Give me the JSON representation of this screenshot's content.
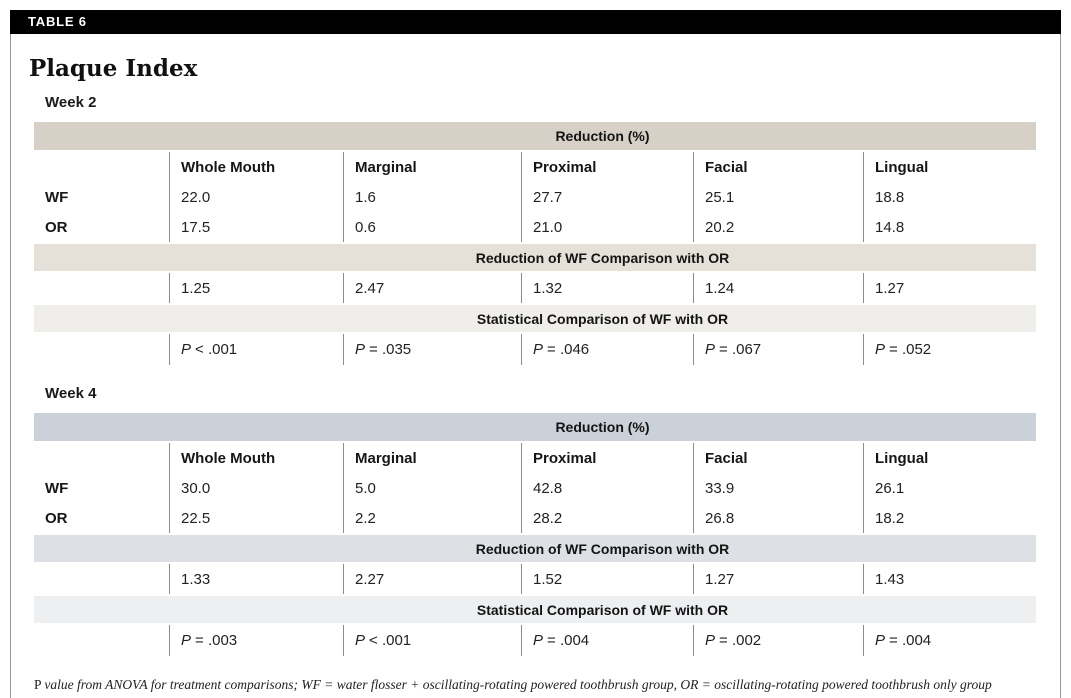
{
  "table_tag": "TABLE 6",
  "title": "Plaque Index",
  "p_symbol": "P",
  "columns": [
    "Whole Mouth",
    "Marginal",
    "Proximal",
    "Facial",
    "Lingual"
  ],
  "sections": [
    {
      "week": "Week 2",
      "band1": "Reduction (%)",
      "band2": "Reduction of WF Comparison with OR",
      "band3": "Statistical Comparison of WF with OR",
      "rows": [
        {
          "label": "WF",
          "values": [
            "22.0",
            "1.6",
            "27.7",
            "25.1",
            "18.8"
          ]
        },
        {
          "label": "OR",
          "values": [
            "17.5",
            "0.6",
            "21.0",
            "20.2",
            "14.8"
          ]
        }
      ],
      "ratios": [
        "1.25",
        "2.47",
        "1.32",
        "1.24",
        "1.27"
      ],
      "pvalues": [
        "< .001",
        "= .035",
        "= .046",
        "= .067",
        "= .052"
      ],
      "colors": {
        "band1": "#d6d0c6",
        "band2": "#e5e0d8",
        "band3": "#f0eeea"
      }
    },
    {
      "week": "Week 4",
      "band1": "Reduction (%)",
      "band2": "Reduction of WF Comparison with OR",
      "band3": "Statistical Comparison of WF with OR",
      "rows": [
        {
          "label": "WF",
          "values": [
            "30.0",
            "5.0",
            "42.8",
            "33.9",
            "26.1"
          ]
        },
        {
          "label": "OR",
          "values": [
            "22.5",
            "2.2",
            "28.2",
            "26.8",
            "18.2"
          ]
        }
      ],
      "ratios": [
        "1.33",
        "2.27",
        "1.52",
        "1.27",
        "1.43"
      ],
      "pvalues": [
        "= .003",
        "< .001",
        "= .004",
        "= .002",
        "= .004"
      ],
      "colors": {
        "band1": "#cbd1d8",
        "band2": "#dde0e4",
        "band3": "#edeff1"
      }
    }
  ],
  "footnote": {
    "prefix": "P",
    "text": "value from ANOVA for treatment comparisons; WF = water flosser + oscillating-rotating powered toothbrush group, OR = oscillating-rotating powered toothbrush only group"
  }
}
